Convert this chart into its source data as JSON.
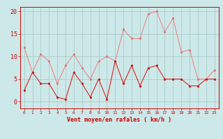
{
  "x": [
    0,
    1,
    2,
    3,
    4,
    5,
    6,
    7,
    8,
    9,
    10,
    11,
    12,
    13,
    14,
    15,
    16,
    17,
    18,
    19,
    20,
    21,
    22,
    23
  ],
  "vent_moyen": [
    2.5,
    6.5,
    4.0,
    4.0,
    1.0,
    0.5,
    6.5,
    4.0,
    1.0,
    5.0,
    0.5,
    9.0,
    4.0,
    8.0,
    3.5,
    7.5,
    8.0,
    5.0,
    5.0,
    5.0,
    3.5,
    3.5,
    5.0,
    5.0
  ],
  "rafales": [
    12.0,
    6.5,
    10.5,
    9.0,
    4.0,
    8.0,
    10.5,
    7.5,
    5.0,
    9.0,
    10.0,
    9.0,
    16.0,
    14.0,
    14.0,
    19.5,
    20.0,
    15.5,
    18.5,
    11.0,
    11.5,
    5.0,
    5.0,
    7.0
  ],
  "xlabel": "Vent moyen/en rafales ( km/h )",
  "ylim": [
    -1.5,
    21
  ],
  "yticks": [
    0,
    5,
    10,
    15,
    20
  ],
  "bg_color": "#cce8e8",
  "grid_color": "#aacccc",
  "line_color_moyen": "#dd2222",
  "line_color_rafales": "#ee8888",
  "marker_color_moyen": "#cc1111",
  "marker_color_rafales": "#dd7777",
  "xlabel_color": "#cc0000",
  "tick_color": "#cc0000",
  "ytick_fontsize": 6,
  "xtick_fontsize": 4.5,
  "xlabel_fontsize": 6,
  "linewidth": 0.8,
  "markersize": 2.0
}
